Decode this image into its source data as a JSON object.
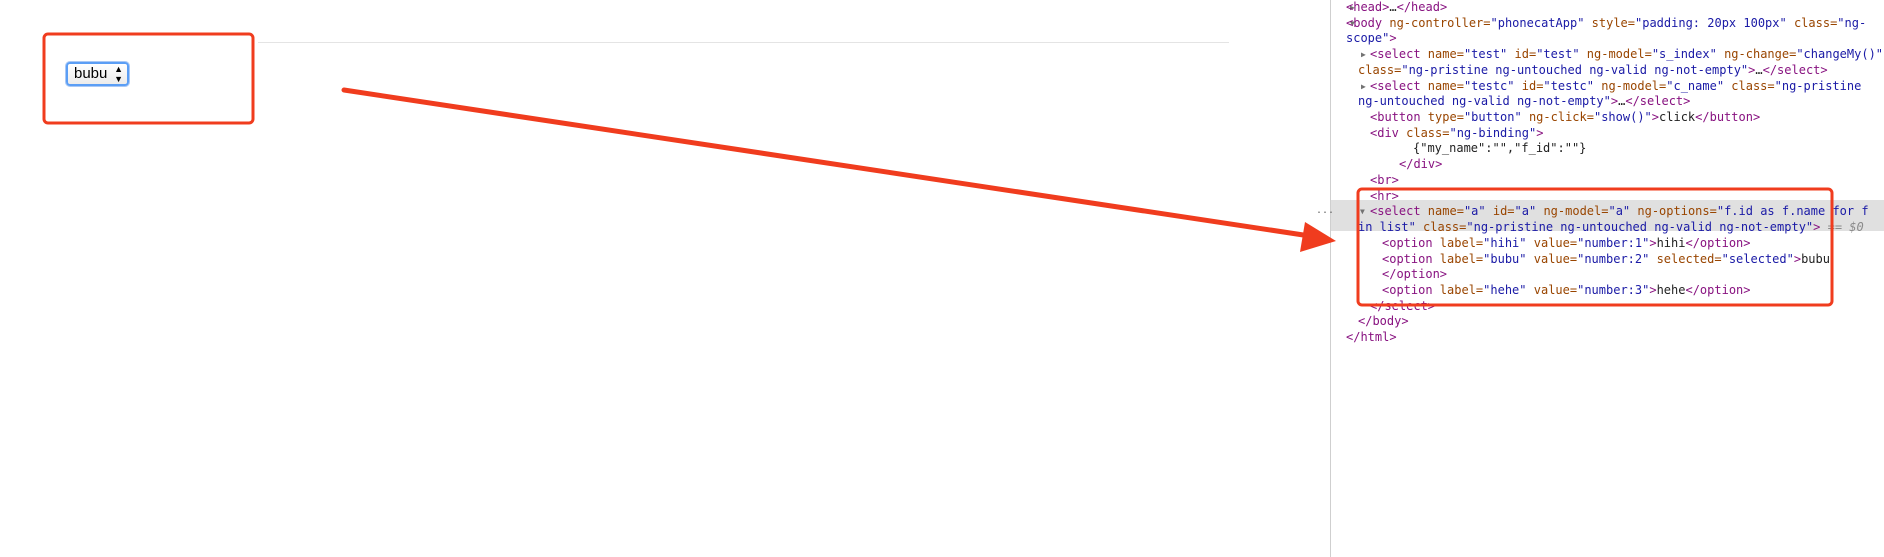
{
  "page": {
    "select_value": "bubu"
  },
  "devtools": {
    "gutter_ellipsis": "...",
    "selected_marker": "== $0",
    "lines": [
      "<head>…</head>",
      "<body ng-controller=\"phonecatApp\" style=\"padding: 20px 100px\" class=\"ng-",
      "scope\">",
      "<select name=\"test\" id=\"test\" ng-model=\"s_index\" ng-change=\"changeMy()\"",
      "class=\"ng-pristine ng-untouched ng-valid ng-not-empty\">…</select>",
      "<select name=\"testc\" id=\"testc\" ng-model=\"c_name\" class=\"ng-pristine",
      "ng-untouched ng-valid ng-not-empty\">…</select>",
      "<button type=\"button\" ng-click=\"show()\">click</button>",
      "<div class=\"ng-binding\">",
      "{\"my_name\":\"\",\"f_id\":\"\"}",
      "</div>",
      "<br>",
      "<hr>",
      "<select name=\"a\" id=\"a\" ng-model=\"a\" ng-options=\"f.id as f.name for f",
      "in list\" class=\"ng-pristine ng-untouched ng-valid ng-not-empty\">",
      "<option label=\"hihi\" value=\"number:1\">hihi</option>",
      "<option label=\"bubu\" value=\"number:2\" selected=\"selected\">bubu",
      "</option>",
      "<option label=\"hehe\" value=\"number:3\">hehe</option>",
      "</select>",
      "</body>",
      "</html>"
    ]
  }
}
